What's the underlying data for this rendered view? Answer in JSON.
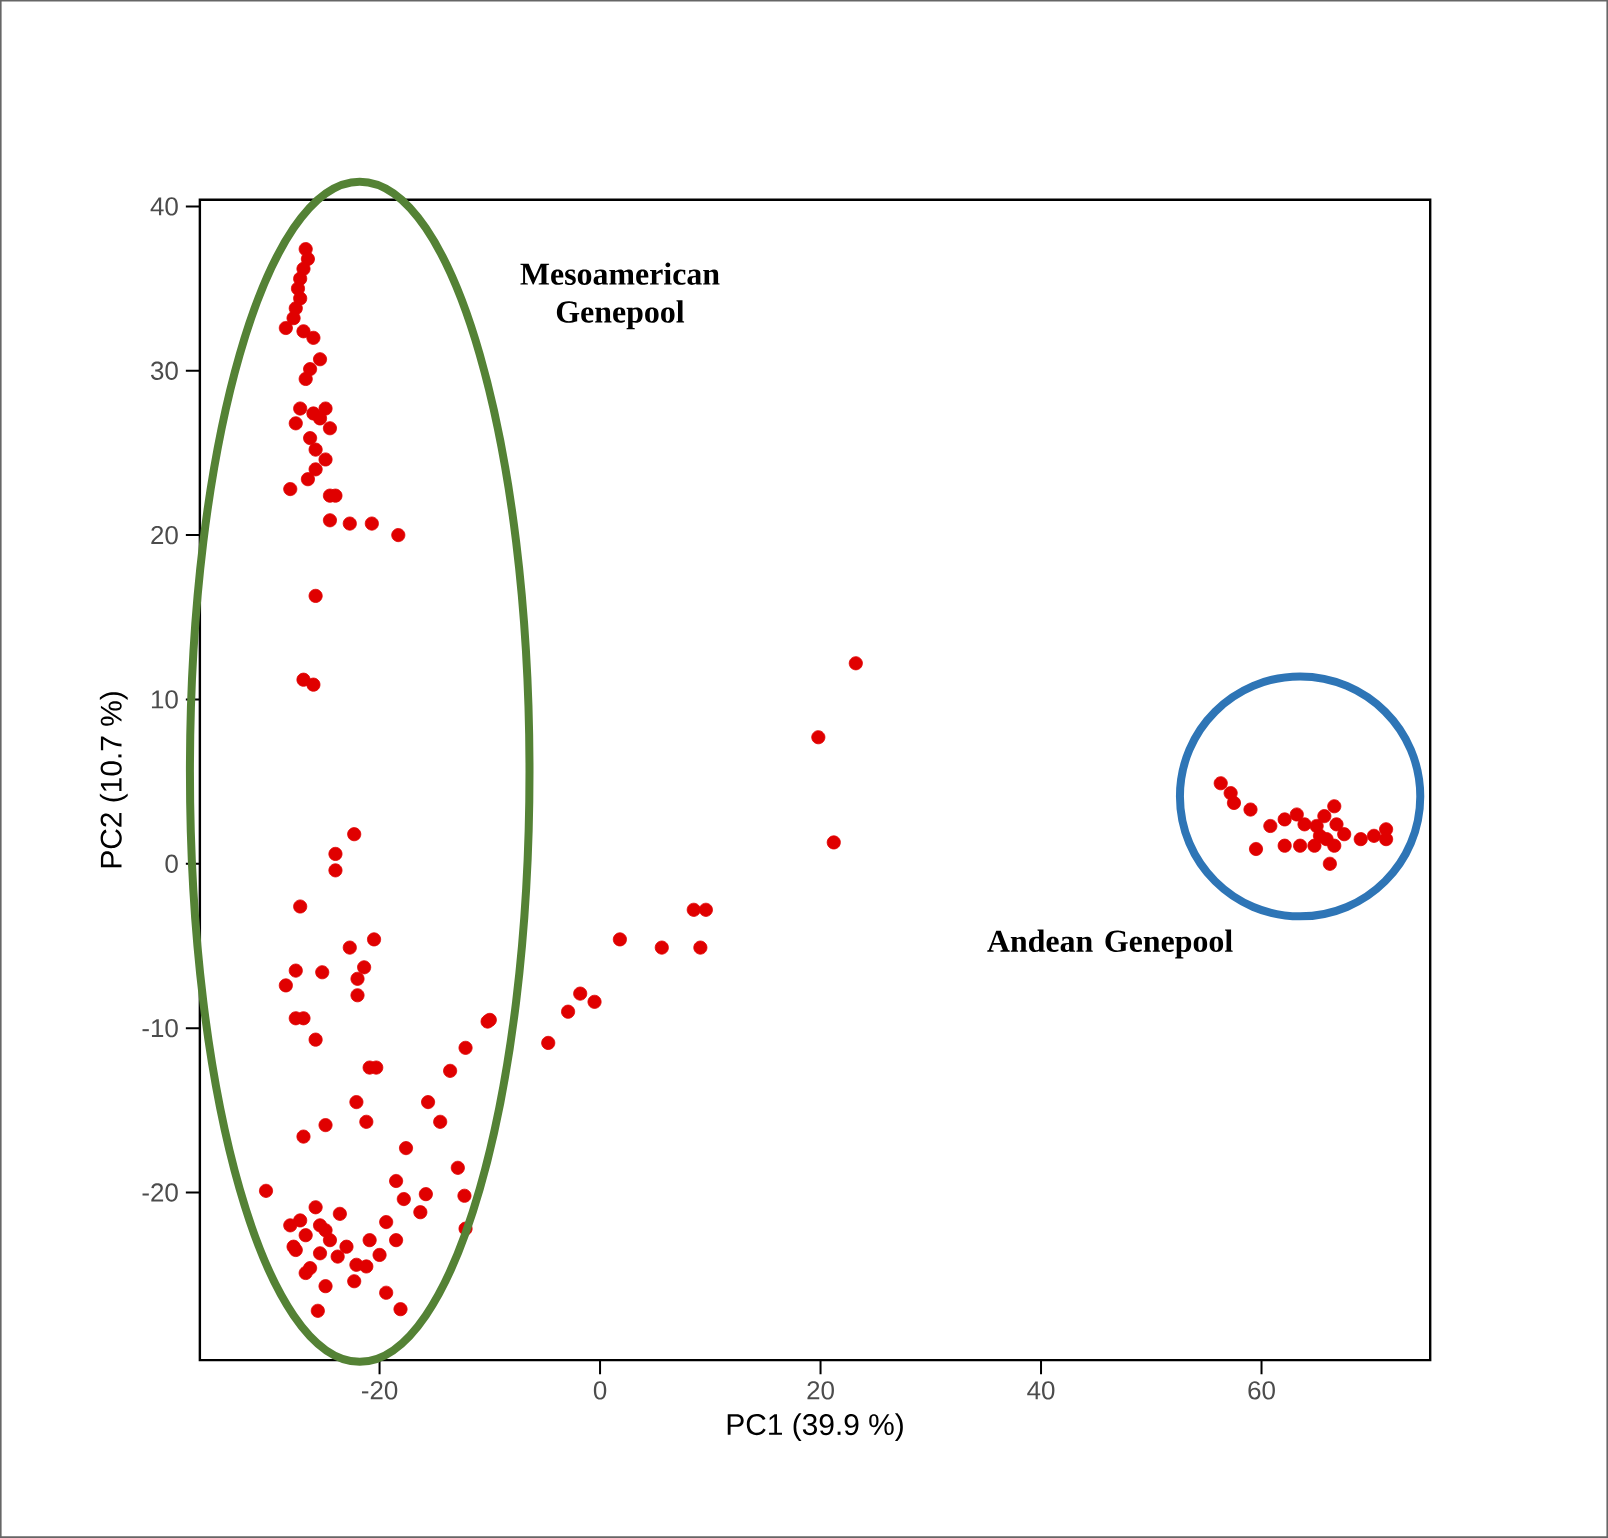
{
  "chart_data": {
    "type": "scatter",
    "xlabel": "PC1 (39.9 %)",
    "ylabel": "PC2 (10.7 %)",
    "xlim": [
      -36.3,
      75.3
    ],
    "ylim": [
      -30.2,
      40.4
    ],
    "xticks": [
      -20,
      0,
      20,
      40,
      60
    ],
    "yticks": [
      -20,
      -10,
      0,
      10,
      20,
      30,
      40
    ],
    "grid": false,
    "marker": "circle",
    "annotations": [
      "Mesoamerican Genepool",
      "Andean Genepool"
    ],
    "series": [
      {
        "color": "#e00000",
        "x": [
          -26.7,
          -26.5,
          -26.9,
          -27.2,
          -27.4,
          -27.2,
          -27.6,
          -27.8,
          -28.5,
          -26.9,
          -26.0,
          -25.4,
          -26.3,
          -26.7,
          -27.2,
          -26.0,
          -27.6,
          -25.4,
          -24.9,
          -24.5,
          -26.3,
          -25.8,
          -24.9,
          -25.8,
          -26.5,
          -28.1,
          -24.5,
          -24.0,
          -22.7,
          -20.7,
          -18.3,
          -24.5,
          -25.8,
          -26.9,
          -26.0,
          -22.3,
          -24.0,
          -24.0,
          -27.2,
          -22.7,
          -20.5,
          -27.6,
          -25.2,
          -28.5,
          -21.4,
          -22.0,
          -22.0,
          -27.6,
          -26.9,
          -25.8,
          -10.2,
          -4.7,
          -12.2,
          -20.9,
          -20.3,
          -13.6,
          -22.1,
          -15.6,
          -21.2,
          -14.5,
          -24.9,
          -26.9,
          -17.6,
          -12.9,
          -18.5,
          -30.3,
          -15.8,
          -17.8,
          -12.3,
          -25.8,
          -23.6,
          -27.2,
          -16.3,
          -19.4,
          -26.7,
          -24.9,
          -18.5,
          -27.6,
          -12.2,
          -23.0,
          -25.4,
          -20.0,
          -21.2,
          -22.3,
          -26.7,
          -24.9,
          -19.4,
          -25.6,
          -18.1,
          -27.8,
          -23.8,
          -22.1,
          -28.1,
          -25.4,
          -24.5,
          -26.3,
          -20.9,
          23.2,
          19.8,
          21.2,
          8.5,
          9.6,
          1.8,
          5.6,
          9.1,
          -1.8,
          -0.5,
          -2.9,
          -10.0,
          56.3,
          57.2,
          57.5,
          59.0,
          60.8,
          62.1,
          63.2,
          63.9,
          65.0,
          65.7,
          66.6,
          66.8,
          67.5,
          65.9,
          64.8,
          63.5,
          62.1,
          59.5,
          69.0,
          70.2,
          71.3,
          71.3,
          66.2,
          66.6,
          65.3
        ],
        "values": [
          37.4,
          36.8,
          36.2,
          35.6,
          35.0,
          34.4,
          33.8,
          33.2,
          32.6,
          32.4,
          32.0,
          30.7,
          30.1,
          29.5,
          27.7,
          27.4,
          26.8,
          27.1,
          27.7,
          26.5,
          25.9,
          25.2,
          24.6,
          24.0,
          23.4,
          22.8,
          22.4,
          22.4,
          20.7,
          20.7,
          20.0,
          20.9,
          16.3,
          11.2,
          10.9,
          1.8,
          0.6,
          -0.4,
          -2.6,
          -5.1,
          -4.6,
          -6.5,
          -6.6,
          -7.4,
          -6.3,
          -7.0,
          -8.0,
          -9.4,
          -9.4,
          -10.7,
          -9.6,
          -10.9,
          -11.2,
          -12.4,
          -12.4,
          -12.6,
          -14.5,
          -14.5,
          -15.7,
          -15.7,
          -15.9,
          -16.6,
          -17.3,
          -18.5,
          -19.3,
          -19.9,
          -20.1,
          -20.4,
          -20.2,
          -20.9,
          -21.3,
          -21.7,
          -21.2,
          -21.8,
          -22.6,
          -22.3,
          -22.9,
          -23.5,
          -22.2,
          -23.3,
          -23.7,
          -23.8,
          -24.5,
          -25.4,
          -24.9,
          -25.7,
          -26.1,
          -27.2,
          -27.1,
          -23.3,
          -23.9,
          -24.4,
          -22.0,
          -22.0,
          -22.9,
          -24.6,
          -22.9,
          12.2,
          7.7,
          1.3,
          -2.8,
          -2.8,
          -4.6,
          -5.1,
          -5.1,
          -7.9,
          -8.4,
          -9.0,
          -9.5,
          4.9,
          4.3,
          3.7,
          3.3,
          2.3,
          2.7,
          3.0,
          2.4,
          2.3,
          2.9,
          3.5,
          2.4,
          1.8,
          1.5,
          1.1,
          1.1,
          1.1,
          0.9,
          1.5,
          1.7,
          2.1,
          1.5,
          0.0,
          1.1,
          1.7
        ]
      }
    ]
  }
}
